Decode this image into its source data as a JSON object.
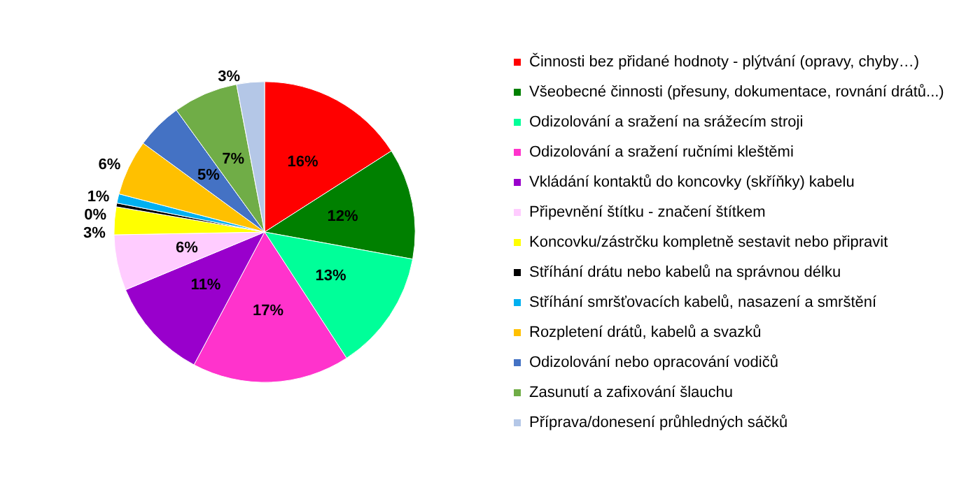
{
  "chart_data": {
    "type": "pie",
    "categories": [
      "Činnosti bez přidané hodnoty - plýtvání (opravy, chyby…)",
      "Všeobecné činnosti (přesuny, dokumentace, rovnání drátů...)",
      "Odizolování a sražení na srážecím stroji",
      "Odizolování a sražení ručními kleštěmi",
      "Vkládání kontaktů do koncovky (skříňky) kabelu",
      "Připevnění štítku - značení štítkem",
      "Koncovku/zástrčku kompletně sestavit nebo připravit",
      "Stříhání drátu nebo kabelů na správnou délku",
      "Stříhání smršťovacích kabelů, nasazení a smrštění",
      "Rozpletení drátů, kabelů a svazků",
      "Odizolování nebo opracování vodičů",
      "Zasunutí a zafixování šlauchu",
      "Příprava/donesení průhledných sáčků"
    ],
    "values": [
      16,
      12,
      13,
      17,
      11,
      6,
      3,
      0.4,
      1,
      6,
      5,
      7,
      3
    ],
    "colors": [
      "#ff0000",
      "#008000",
      "#00ff99",
      "#ff33cc",
      "#9900cc",
      "#ffccff",
      "#ffff00",
      "#000000",
      "#00b0f0",
      "#ffc000",
      "#4472c4",
      "#70ad47",
      "#b4c7e7"
    ],
    "value_labels": [
      "16%",
      "12%",
      "13%",
      "17%",
      "11%",
      "6%",
      "3%",
      "0%",
      "1%",
      "6%",
      "5%",
      "7%",
      "3%"
    ],
    "legend": "right"
  }
}
